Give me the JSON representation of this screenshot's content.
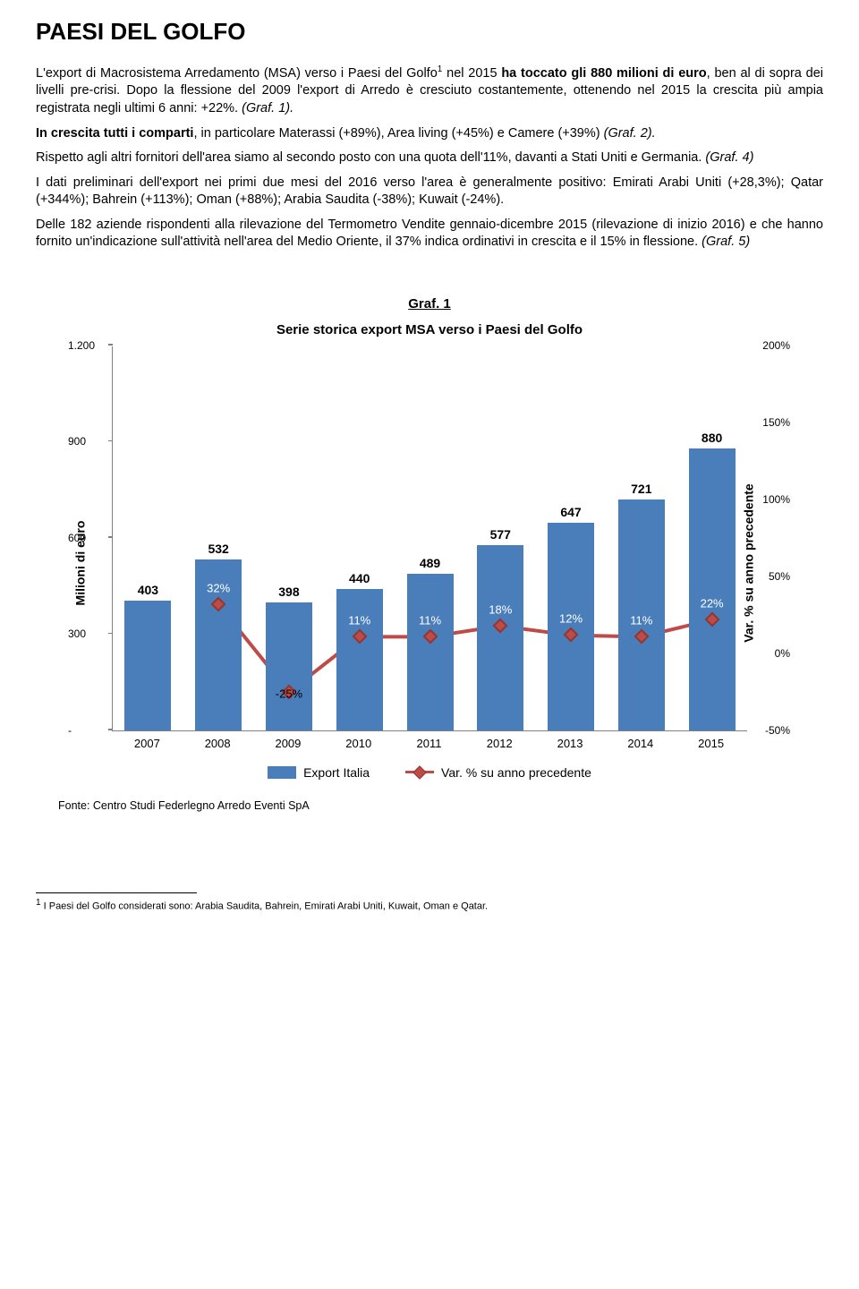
{
  "title": "PAESI DEL GOLFO",
  "paragraphs": {
    "p1_prefix": "L'export di Macrosistema Arredamento (MSA) verso i Paesi del Golfo",
    "p1_sup": "1",
    "p1_mid": " nel 2015 ",
    "p1_bold": "ha toccato gli 880 milioni di euro",
    "p1_suffix": ", ben al di sopra dei livelli pre-crisi. Dopo la flessione del 2009 l'export di Arredo è cresciuto costantemente, ottenendo nel 2015 la crescita più ampia registrata negli ultimi 6 anni: +22%. ",
    "p1_italic": "(Graf. 1).",
    "p2_bold": "In crescita tutti i comparti",
    "p2_rest": ", in particolare Materassi (+89%), Area living (+45%) e Camere (+39%) ",
    "p2_italic": "(Graf. 2).",
    "p3_text": "Rispetto agli altri fornitori dell'area siamo al secondo posto con una quota dell'11%, davanti a Stati Uniti e Germania. ",
    "p3_italic": "(Graf. 4)",
    "p4": "I dati preliminari dell'export nei primi due mesi del 2016 verso l'area è generalmente positivo: Emirati Arabi Uniti (+28,3%); Qatar (+344%); Bahrein (+113%); Oman (+88%); Arabia Saudita (-38%); Kuwait (-24%).",
    "p5_text": "Delle 182 aziende rispondenti alla rilevazione del Termometro Vendite gennaio-dicembre 2015 (rilevazione di inizio 2016) e che hanno fornito un'indicazione sull'attività nell'area del Medio Oriente, il 37% indica ordinativi in crescita e il 15% in flessione. ",
    "p5_italic": "(Graf. 5)"
  },
  "chart": {
    "graf_label": "Graf. 1",
    "title": "Serie storica export MSA verso i Paesi del Golfo",
    "y_left_label": "Milioni di euro",
    "y_right_label": "Var. % su anno precedente",
    "y_left_min": 0,
    "y_left_max": 1200,
    "y_left_ticks": [
      {
        "v": 1200,
        "label": "1.200"
      },
      {
        "v": 900,
        "label": "900"
      },
      {
        "v": 600,
        "label": "600"
      },
      {
        "v": 300,
        "label": "300"
      },
      {
        "v": 0,
        "label": "-"
      }
    ],
    "y_right_min": -50,
    "y_right_max": 200,
    "y_right_ticks": [
      {
        "v": 200,
        "label": "200%"
      },
      {
        "v": 150,
        "label": "150%"
      },
      {
        "v": 100,
        "label": "100%"
      },
      {
        "v": 50,
        "label": "50%"
      },
      {
        "v": 0,
        "label": "0%"
      },
      {
        "v": -50,
        "label": "-50%"
      }
    ],
    "years": [
      "2007",
      "2008",
      "2009",
      "2010",
      "2011",
      "2012",
      "2013",
      "2014",
      "2015"
    ],
    "bars": [
      403,
      532,
      398,
      440,
      489,
      577,
      647,
      721,
      880
    ],
    "bar_color": "#4a7ebb",
    "line_values": [
      null,
      32,
      -25,
      11,
      11,
      18,
      12,
      11,
      22
    ],
    "line_labels": [
      "",
      "32%",
      "-25%",
      "11%",
      "11%",
      "18%",
      "12%",
      "11%",
      "22%"
    ],
    "line_color": "#be4b48",
    "line_width": 4,
    "legend": {
      "bar": "Export Italia",
      "line": "Var. % su anno precedente"
    }
  },
  "source": "Fonte: Centro Studi Federlegno Arredo Eventi SpA",
  "footnote_num": "1",
  "footnote": " I Paesi del Golfo considerati sono: Arabia Saudita, Bahrein, Emirati Arabi Uniti, Kuwait, Oman e Qatar."
}
